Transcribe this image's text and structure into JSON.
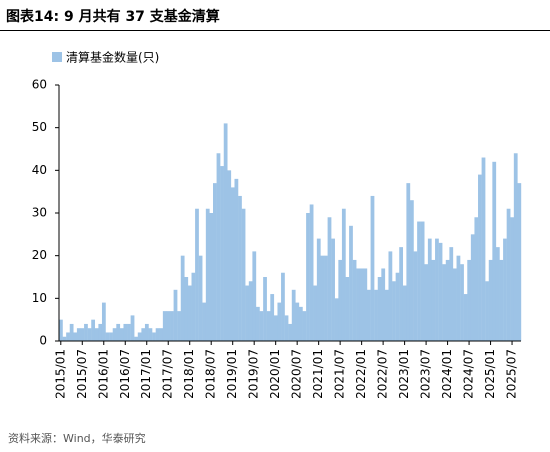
{
  "title": "图表14:  9 月共有 37 支基金清算",
  "source": "资料来源：Wind，华泰研究",
  "chart_data": {
    "type": "bar",
    "series": [
      {
        "name": "清算基金数量(只)",
        "color": "#9dc3e6",
        "values": [
          5,
          1,
          2,
          4,
          2,
          3,
          3,
          4,
          3,
          5,
          3,
          4,
          9,
          2,
          2,
          3,
          4,
          3,
          4,
          4,
          6,
          1,
          2,
          3,
          4,
          3,
          2,
          3,
          3,
          7,
          7,
          7,
          12,
          7,
          20,
          15,
          13,
          16,
          31,
          20,
          9,
          31,
          30,
          37,
          44,
          41,
          51,
          40,
          36,
          38,
          34,
          31,
          13,
          14,
          21,
          8,
          7,
          15,
          7,
          11,
          6,
          9,
          16,
          6,
          4,
          12,
          9,
          8,
          7,
          30,
          32,
          13,
          24,
          20,
          20,
          29,
          24,
          10,
          19,
          31,
          15,
          27,
          19,
          17,
          17,
          17,
          12,
          34,
          12,
          15,
          17,
          12,
          21,
          14,
          16,
          22,
          13,
          37,
          33,
          21,
          28,
          28,
          18,
          24,
          19,
          24,
          23,
          18,
          19,
          22,
          17,
          20,
          18,
          11,
          19,
          25,
          29,
          39,
          43,
          14,
          19,
          42,
          22,
          19,
          24,
          31,
          29,
          44,
          37
        ]
      }
    ],
    "categories": [
      "2015/01",
      null,
      null,
      null,
      null,
      null,
      "2015/07",
      null,
      null,
      null,
      null,
      null,
      "2016/01",
      null,
      null,
      null,
      null,
      null,
      "2016/07",
      null,
      null,
      null,
      null,
      null,
      "2017/01",
      null,
      null,
      null,
      null,
      null,
      "2017/07",
      null,
      null,
      null,
      null,
      null,
      "2018/01",
      null,
      null,
      null,
      null,
      null,
      "2018/07",
      null,
      null,
      null,
      null,
      null,
      "2019/01",
      null,
      null,
      null,
      null,
      null,
      "2019/07",
      null,
      null,
      null,
      null,
      null,
      "2020/01",
      null,
      null,
      null,
      null,
      null,
      "2020/07",
      null,
      null,
      null,
      null,
      null,
      "2021/01",
      null,
      null,
      null,
      null,
      null,
      "2021/07",
      null,
      null,
      null,
      null,
      null,
      "2022/01",
      null,
      null,
      null,
      null,
      null,
      "2022/07",
      null,
      null,
      null,
      null,
      null,
      "2023/01",
      null,
      null,
      null,
      null,
      null,
      "2023/07",
      null,
      null,
      null,
      null,
      null,
      "2024/01",
      null,
      null,
      null,
      null,
      null,
      "2024/07",
      null,
      null,
      null,
      null,
      null,
      "2025/01",
      null,
      null,
      null,
      null,
      null,
      "2025/07",
      null,
      null
    ],
    "ylim": [
      0,
      60
    ],
    "yticks": [
      0,
      10,
      20,
      30,
      40,
      50,
      60
    ],
    "grid": false,
    "legend": "top-left"
  }
}
